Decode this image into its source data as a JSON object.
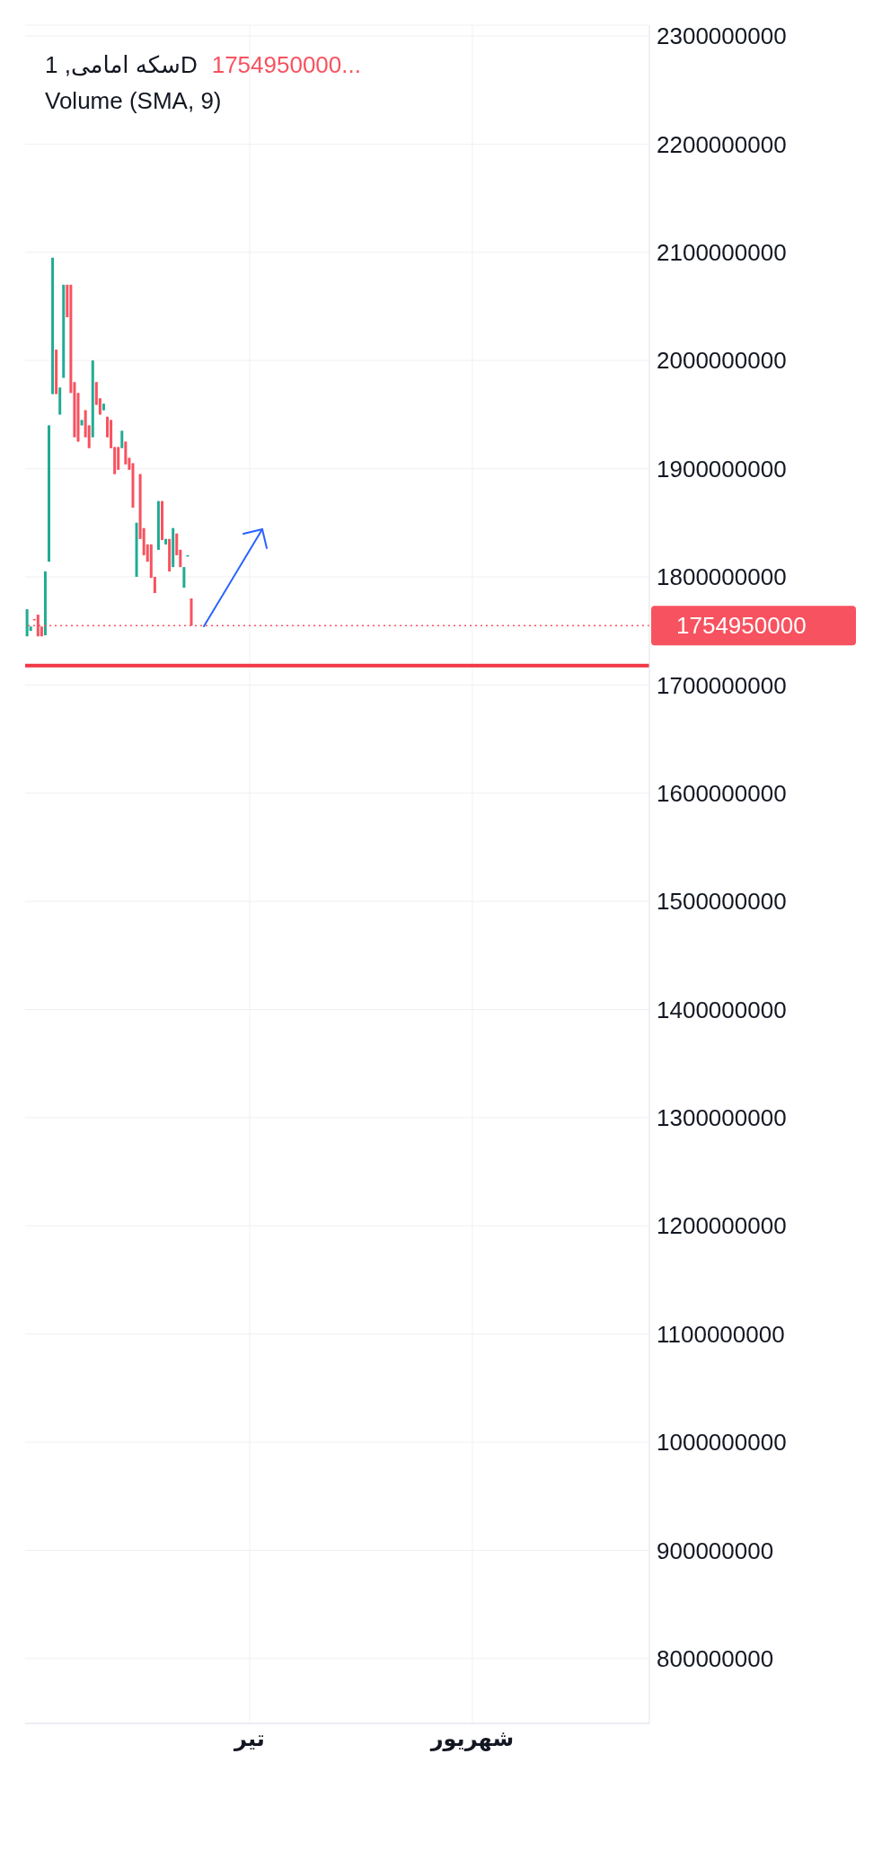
{
  "chart_data": {
    "type": "candlestick",
    "title": "سکه امامی, 1D",
    "annotations": [
      "1754950000...",
      "Volume (SMA, 9)"
    ],
    "categories": [
      null,
      null,
      null,
      null,
      null,
      null,
      null,
      null,
      null,
      null,
      null,
      null,
      null,
      null,
      null,
      null,
      null,
      null,
      null,
      null,
      null,
      null,
      null,
      null,
      null,
      null,
      null,
      null,
      null,
      null,
      null,
      null,
      null,
      null,
      null,
      null,
      null,
      null,
      null,
      null,
      null,
      null,
      null,
      null,
      null,
      null,
      null,
      null,
      null,
      null,
      null,
      null,
      null,
      null,
      null,
      null,
      null,
      null,
      null,
      null,
      null,
      "تیر",
      null,
      null,
      null,
      null,
      null,
      null,
      null,
      null,
      null,
      null,
      null,
      null,
      null,
      null,
      null,
      null,
      null,
      null,
      null,
      null,
      null,
      null,
      null,
      null,
      null,
      null,
      null,
      null,
      null,
      null,
      null,
      null,
      null,
      null,
      null,
      null,
      null,
      null,
      null,
      null,
      null,
      null,
      null,
      null,
      null,
      null,
      null,
      null,
      null,
      null,
      null,
      null,
      null,
      null,
      null,
      null,
      null,
      null,
      null,
      null,
      "شهریور",
      null,
      null,
      null,
      null,
      null,
      null,
      null,
      null,
      null,
      null,
      null,
      null,
      null,
      null,
      null,
      null,
      null,
      null,
      null,
      null,
      null,
      null,
      null,
      null,
      null,
      null,
      null,
      null,
      null,
      null,
      null,
      null,
      null,
      null,
      null,
      null,
      null,
      null,
      null,
      null,
      null,
      null,
      null,
      null,
      null,
      null,
      null,
      null
    ],
    "ohlc": [
      [
        1745000000,
        1770000000,
        1745000000,
        1770000000
      ],
      [
        1750000000,
        1754000000,
        1750000000,
        1754000000
      ],
      [
        1761000000,
        1761000000,
        1760000000,
        1760000000
      ],
      [
        1765000000,
        1765000000,
        1745000000,
        1745000000
      ],
      [
        1754000000,
        1754000000,
        1745000000,
        1745000000
      ],
      [
        1746000000,
        1805000000,
        1746000000,
        1805000000
      ],
      [
        1814000000,
        1940000000,
        1814000000,
        1940000000
      ],
      [
        1969000000,
        2095000000,
        1969000000,
        2095000000
      ],
      [
        2010000000,
        2010000000,
        1969000000,
        1969000000
      ],
      [
        1950000000,
        1975000000,
        1950000000,
        1975000000
      ],
      [
        1984000000,
        2070000000,
        1984000000,
        2070000000
      ],
      [
        2070000000,
        2070000000,
        2040000000,
        2040000000
      ],
      [
        2070000000,
        2070000000,
        1970000000,
        1970000000
      ],
      [
        1980000000,
        1980000000,
        1929000000,
        1929000000
      ],
      [
        1970000000,
        1970000000,
        1925000000,
        1925000000
      ],
      [
        1940000000,
        1945000000,
        1940000000,
        1945000000
      ],
      [
        1954000000,
        1954000000,
        1929000000,
        1929000000
      ],
      [
        1940000000,
        1940000000,
        1919000000,
        1919000000
      ],
      [
        1929000000,
        2000000000,
        1929000000,
        2000000000
      ],
      [
        1980000000,
        1980000000,
        1959000000,
        1959000000
      ],
      [
        1965000000,
        1965000000,
        1950000000,
        1950000000
      ],
      [
        1954000000,
        1960000000,
        1954000000,
        1960000000
      ],
      [
        1948000000,
        1948000000,
        1929000000,
        1929000000
      ],
      [
        1945000000,
        1945000000,
        1919000000,
        1919000000
      ],
      [
        1920000000,
        1920000000,
        1895000000,
        1895000000
      ],
      [
        1920000000,
        1920000000,
        1899000000,
        1899000000
      ],
      [
        1919000000,
        1935000000,
        1919000000,
        1935000000
      ],
      [
        1925000000,
        1925000000,
        1904000000,
        1904000000
      ],
      [
        1910000000,
        1910000000,
        1899000000,
        1899000000
      ],
      [
        1905000000,
        1905000000,
        1864000000,
        1864000000
      ],
      [
        1800000000,
        1850000000,
        1800000000,
        1850000000
      ],
      [
        1895000000,
        1895000000,
        1835000000,
        1835000000
      ],
      [
        1845000000,
        1845000000,
        1820000000,
        1820000000
      ],
      [
        1830000000,
        1830000000,
        1814000000,
        1814000000
      ],
      [
        1830000000,
        1830000000,
        1799000000,
        1799000000
      ],
      [
        1800000000,
        1800000000,
        1785000000,
        1785000000
      ],
      [
        1825000000,
        1870000000,
        1825000000,
        1870000000
      ],
      [
        1870000000,
        1870000000,
        1834000000,
        1834000000
      ],
      [
        1830000000,
        1835000000,
        1830000000,
        1835000000
      ],
      [
        1835000000,
        1835000000,
        1805000000,
        1805000000
      ],
      [
        1809000000,
        1845000000,
        1809000000,
        1845000000
      ],
      [
        1840000000,
        1840000000,
        1820000000,
        1820000000
      ],
      [
        1825000000,
        1825000000,
        1809000000,
        1809000000
      ],
      [
        1790000000,
        1809000000,
        1790000000,
        1809000000
      ],
      [
        1819000000,
        1820000000,
        1819000000,
        1820000000
      ],
      [
        1780000000,
        1780000000,
        1754950000,
        1754950000
      ],
      null,
      null,
      null,
      null,
      null,
      null,
      null,
      null,
      null,
      null,
      null,
      null,
      null,
      null,
      null,
      null,
      null,
      null,
      null,
      null,
      null,
      null,
      null,
      null,
      null,
      null,
      null,
      null,
      null,
      null,
      null,
      null,
      null,
      null,
      null,
      null,
      null,
      null,
      null,
      null,
      null,
      null,
      null,
      null,
      null,
      null,
      null,
      null,
      null,
      null,
      null,
      null,
      null,
      null,
      null,
      null,
      null,
      null,
      null,
      null,
      null,
      null,
      null,
      null,
      null,
      null,
      null,
      null,
      null,
      null,
      null,
      null,
      null,
      null,
      null,
      null,
      null,
      null,
      null,
      null,
      null,
      null,
      null,
      null,
      null,
      null,
      null,
      null,
      null,
      null,
      null,
      null,
      null,
      null,
      null,
      null,
      null,
      null,
      null,
      null,
      null,
      null,
      null,
      null,
      null,
      null,
      null,
      null,
      null,
      null,
      null,
      null,
      null,
      null,
      null,
      null,
      null,
      null,
      null,
      null,
      null,
      null,
      null,
      null,
      null
    ],
    "colors": [
      "#22ab94",
      "#22ab94",
      "#f7525f",
      "#f7525f",
      "#f7525f",
      "#22ab94",
      "#22ab94",
      "#22ab94",
      "#f7525f",
      "#22ab94",
      "#22ab94",
      "#f7525f",
      "#f7525f",
      "#f7525f",
      "#f7525f",
      "#22ab94",
      "#f7525f",
      "#f7525f",
      "#22ab94",
      "#f7525f",
      "#f7525f",
      "#22ab94",
      "#f7525f",
      "#f7525f",
      "#f7525f",
      "#f7525f",
      "#22ab94",
      "#f7525f",
      "#f7525f",
      "#f7525f",
      "#22ab94",
      "#f7525f",
      "#f7525f",
      "#f7525f",
      "#f7525f",
      "#f7525f",
      "#22ab94",
      "#f7525f",
      "#22ab94",
      "#f7525f",
      "#22ab94",
      "#f7525f",
      "#f7525f",
      "#22ab94",
      "#22ab94",
      "#f7525f",
      null,
      null,
      null,
      null,
      null,
      null,
      null,
      null,
      null,
      null,
      null,
      null,
      null,
      null,
      null,
      null,
      null,
      null,
      null,
      null,
      null,
      null,
      null,
      null,
      null,
      null,
      null,
      null,
      null,
      null,
      null,
      null,
      null,
      null,
      null,
      null,
      null,
      null,
      null,
      null,
      null,
      null,
      null,
      null,
      null,
      null,
      null,
      null,
      null,
      null,
      null,
      null,
      null,
      null,
      null,
      null,
      null,
      null,
      null,
      null,
      null,
      null,
      null,
      null,
      null,
      null,
      null,
      null,
      null,
      null,
      null,
      null,
      null,
      null,
      null,
      null,
      null,
      null,
      null,
      null,
      null,
      null,
      null,
      null,
      null,
      null,
      null,
      null,
      null,
      null,
      null,
      null,
      null,
      null,
      null,
      null,
      null,
      null,
      null,
      null,
      null,
      null,
      null,
      null,
      null,
      null,
      null,
      null,
      null,
      null,
      null,
      null,
      null,
      null,
      null,
      null,
      null,
      null,
      null,
      null,
      null,
      null,
      null,
      null,
      null
    ],
    "ylim": [
      740000000,
      2310000000
    ],
    "yticks": [
      800000000,
      900000000,
      1000000000,
      1100000000,
      1200000000,
      1300000000,
      1400000000,
      1500000000,
      1600000000,
      1700000000,
      1800000000,
      1900000000,
      2000000000,
      2100000000,
      2200000000,
      2300000000
    ],
    "grid": true,
    "ref_lines": [
      {
        "axis": "y",
        "value": 1754950000,
        "label": "1754950000",
        "color": "#f7525f",
        "line_style": "dotted"
      },
      {
        "axis": "y",
        "value": 1718000000,
        "color": "#f23645",
        "line_style": "solid"
      }
    ]
  }
}
